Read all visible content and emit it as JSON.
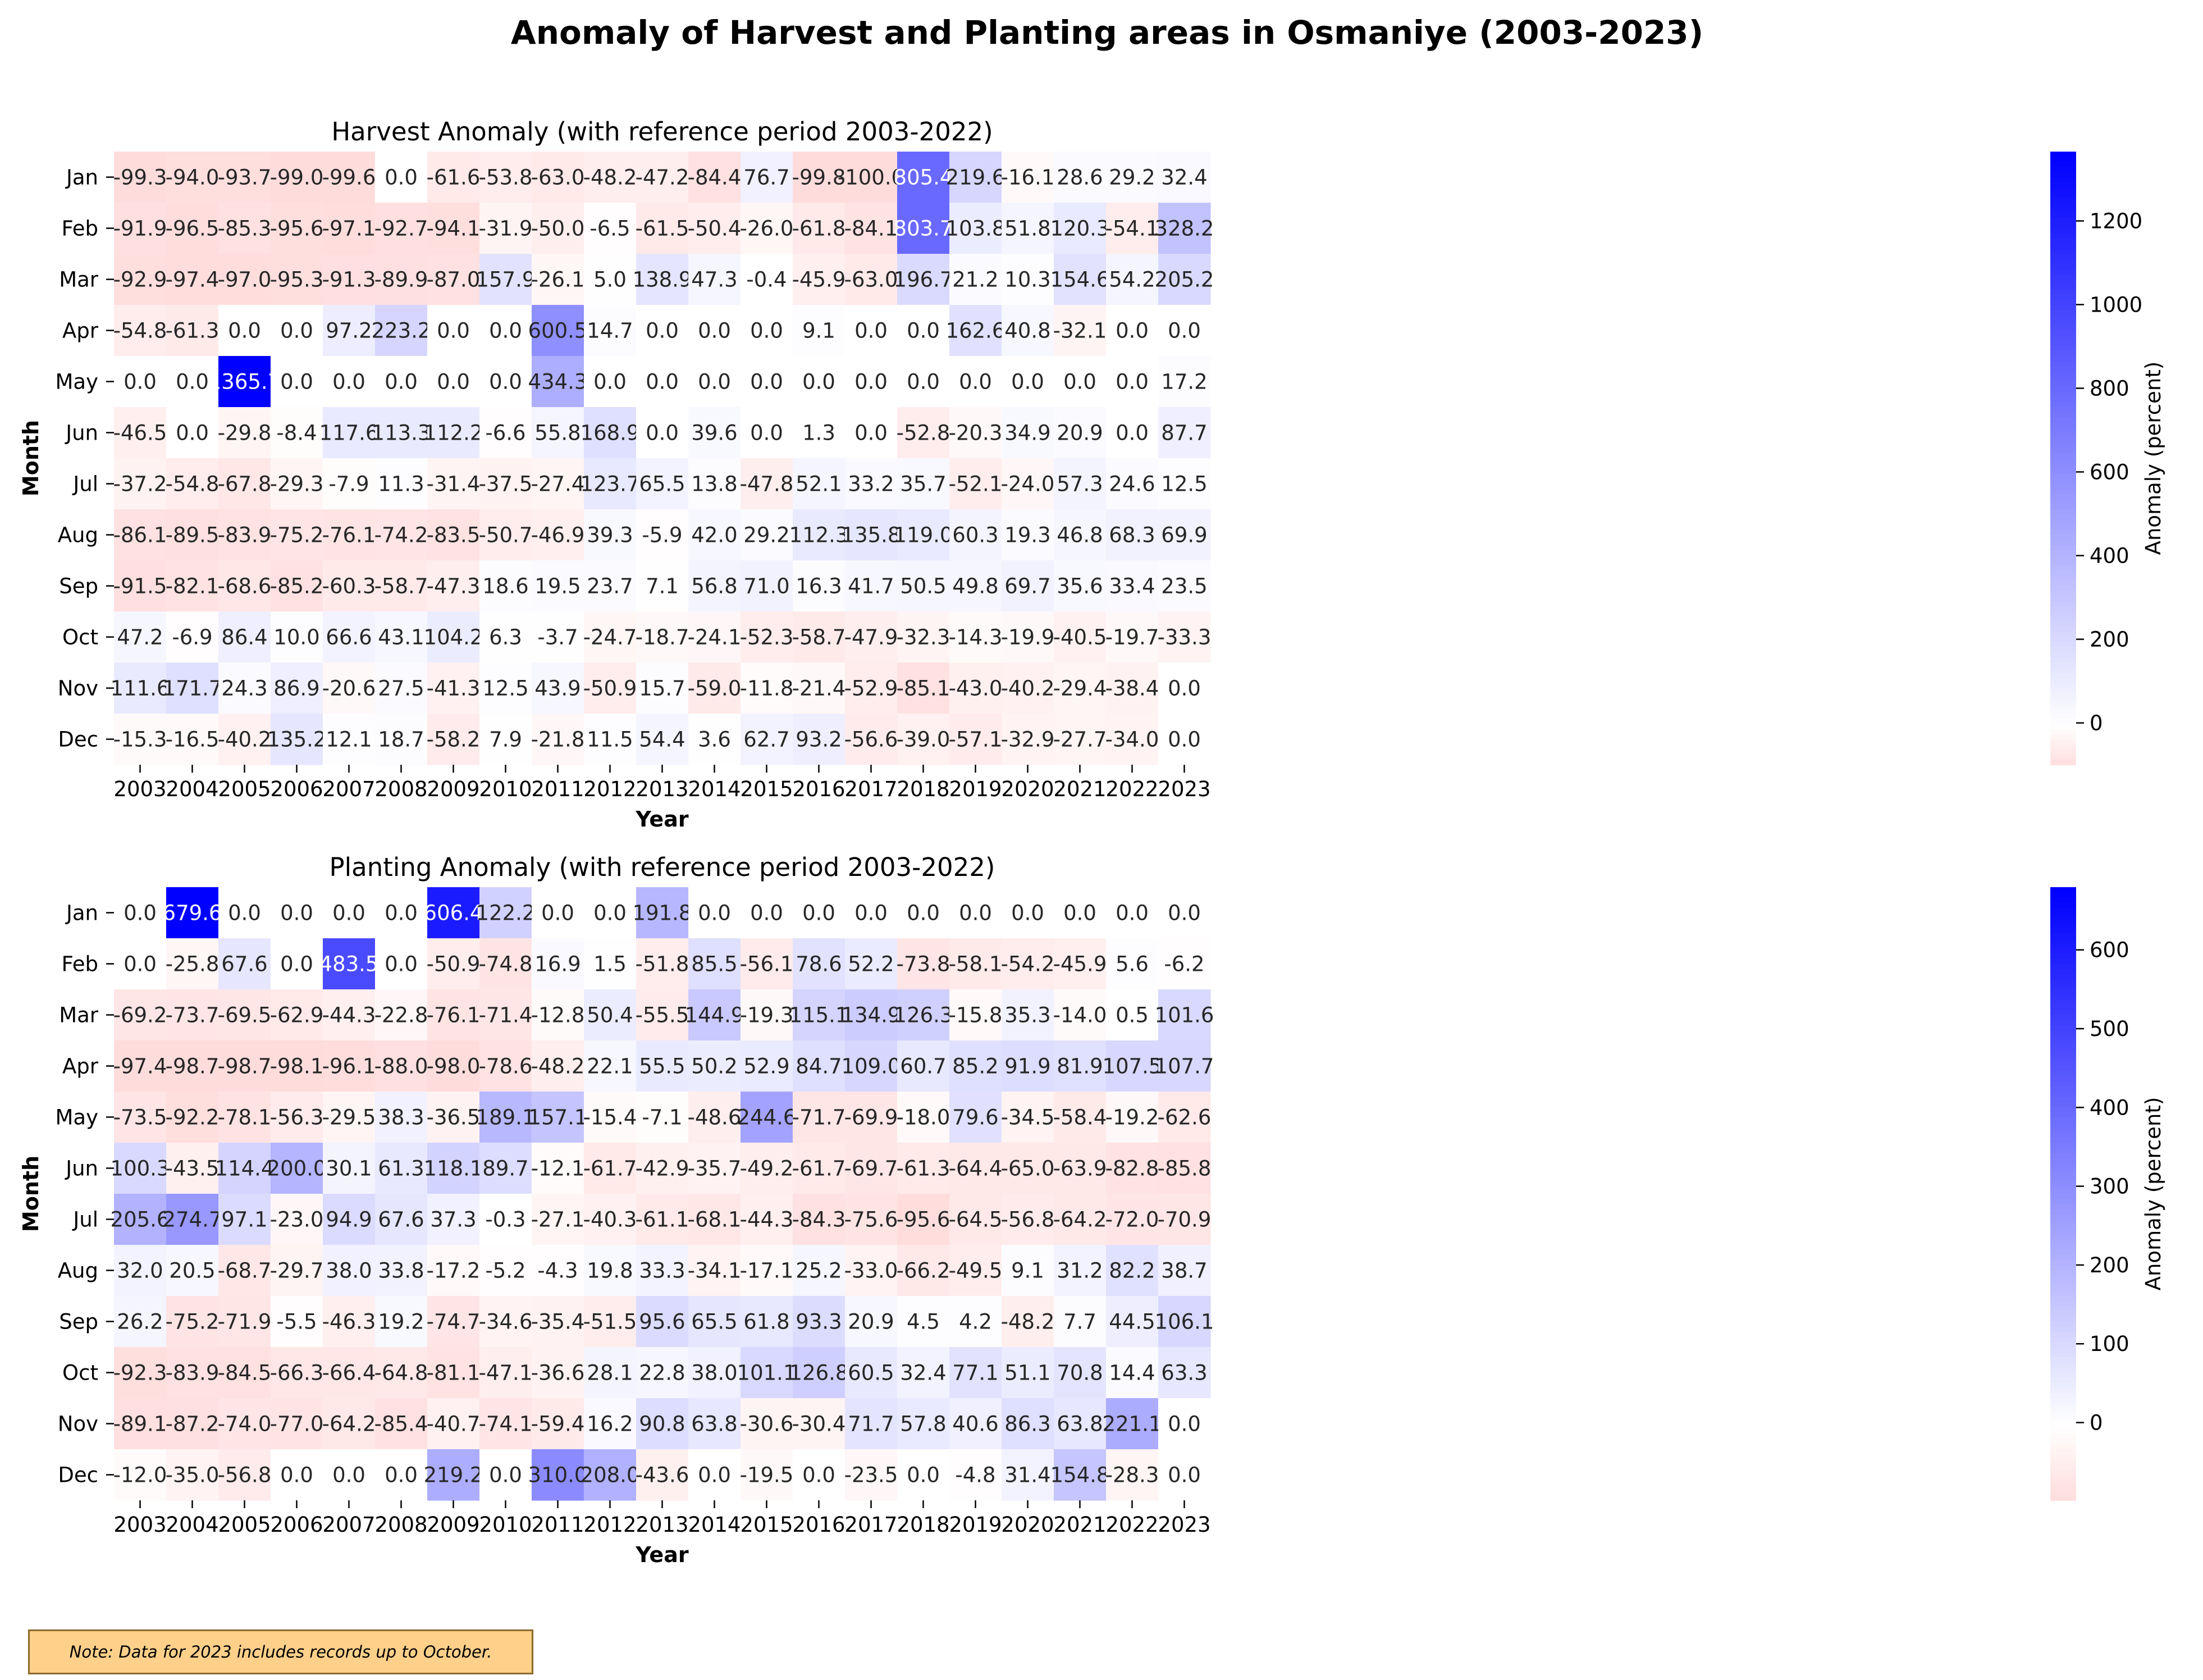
{
  "title": "Anomaly of Harvest and Planting areas in Osmaniye (2003-2023)",
  "note": "Note: Data for 2023 includes records up to October.",
  "chart_data": [
    {
      "type": "heatmap",
      "title": "Harvest Anomaly (with reference period 2003-2022)",
      "xlabel": "Year",
      "ylabel": "Month",
      "x": [
        "2003",
        "2004",
        "2005",
        "2006",
        "2007",
        "2008",
        "2009",
        "2010",
        "2011",
        "2012",
        "2013",
        "2014",
        "2015",
        "2016",
        "2017",
        "2018",
        "2019",
        "2020",
        "2021",
        "2022",
        "2023"
      ],
      "y": [
        "Jan",
        "Feb",
        "Mar",
        "Apr",
        "May",
        "Jun",
        "Jul",
        "Aug",
        "Sep",
        "Oct",
        "Nov",
        "Dec"
      ],
      "values": [
        [
          -99.3,
          -94.0,
          -93.7,
          -99.0,
          -99.6,
          0.0,
          -61.6,
          -53.8,
          -63.0,
          -48.2,
          -47.2,
          -84.4,
          76.7,
          -99.8,
          -100.0,
          805.4,
          219.6,
          -16.1,
          28.6,
          29.2,
          32.4
        ],
        [
          -91.9,
          -96.5,
          -85.3,
          -95.6,
          -97.1,
          -92.7,
          -94.1,
          -31.9,
          -50.0,
          -6.5,
          -61.5,
          -50.4,
          -26.0,
          -61.8,
          -84.1,
          803.7,
          103.8,
          51.8,
          120.3,
          -54.1,
          328.2
        ],
        [
          -92.9,
          -97.4,
          -97.0,
          -95.3,
          -91.3,
          -89.9,
          -87.0,
          157.9,
          -26.1,
          5.0,
          138.9,
          47.3,
          -0.4,
          -45.9,
          -63.0,
          196.7,
          21.2,
          10.3,
          154.6,
          54.2,
          205.2
        ],
        [
          -54.8,
          -61.3,
          0.0,
          0.0,
          97.2,
          223.2,
          0.0,
          0.0,
          600.5,
          14.7,
          0.0,
          0.0,
          0.0,
          9.1,
          0.0,
          0.0,
          162.6,
          40.8,
          -32.1,
          0.0,
          0.0
        ],
        [
          0.0,
          0.0,
          1365.7,
          0.0,
          0.0,
          0.0,
          0.0,
          0.0,
          434.3,
          0.0,
          0.0,
          0.0,
          0.0,
          0.0,
          0.0,
          0.0,
          0.0,
          0.0,
          0.0,
          0.0,
          17.2
        ],
        [
          -46.5,
          0.0,
          -29.8,
          -8.4,
          117.6,
          113.3,
          112.2,
          -6.6,
          55.8,
          168.9,
          0.0,
          39.6,
          0.0,
          1.3,
          0.0,
          -52.8,
          -20.3,
          34.9,
          20.9,
          0.0,
          87.7
        ],
        [
          -37.2,
          -54.8,
          -67.8,
          -29.3,
          -7.9,
          11.3,
          -31.4,
          -37.5,
          -27.4,
          123.7,
          65.5,
          13.8,
          -47.8,
          52.1,
          33.2,
          35.7,
          -52.1,
          -24.0,
          57.3,
          24.6,
          12.5
        ],
        [
          -86.1,
          -89.5,
          -83.9,
          -75.2,
          -76.1,
          -74.2,
          -83.5,
          -50.7,
          -46.9,
          39.3,
          -5.9,
          42.0,
          29.2,
          112.3,
          135.8,
          119.0,
          60.3,
          19.3,
          46.8,
          68.3,
          69.9
        ],
        [
          -91.5,
          -82.1,
          -68.6,
          -85.2,
          -60.3,
          -58.7,
          -47.3,
          18.6,
          19.5,
          23.7,
          7.1,
          56.8,
          71.0,
          16.3,
          41.7,
          50.5,
          49.8,
          69.7,
          35.6,
          33.4,
          23.5
        ],
        [
          47.2,
          -6.9,
          86.4,
          10.0,
          66.6,
          43.1,
          104.2,
          6.3,
          -3.7,
          -24.7,
          -18.7,
          -24.1,
          -52.3,
          -58.7,
          -47.9,
          -32.3,
          -14.3,
          -19.9,
          -40.5,
          -19.7,
          -33.3
        ],
        [
          111.6,
          171.7,
          24.3,
          86.9,
          -20.6,
          27.5,
          -41.3,
          12.5,
          43.9,
          -50.9,
          15.7,
          -59.0,
          -11.8,
          -21.4,
          -52.9,
          -85.1,
          -43.0,
          -40.2,
          -29.4,
          -38.4,
          0.0
        ],
        [
          -15.3,
          -16.5,
          -40.2,
          135.2,
          12.1,
          18.7,
          -58.2,
          7.9,
          -21.8,
          11.5,
          54.4,
          3.6,
          62.7,
          93.2,
          -56.6,
          -39.0,
          -57.1,
          -32.9,
          -27.7,
          -34.0,
          0.0
        ]
      ],
      "colorbar": {
        "label": "Anomaly (percent)",
        "ticks": [
          0,
          200,
          400,
          600,
          800,
          1000,
          1200
        ],
        "range": [
          -100.0,
          1365.7
        ]
      },
      "colors": {
        "negative": "#ffdcdc",
        "zero": "#ffffff",
        "positive": "#0000ff"
      }
    },
    {
      "type": "heatmap",
      "title": "Planting Anomaly (with reference period 2003-2022)",
      "xlabel": "Year",
      "ylabel": "Month",
      "x": [
        "2003",
        "2004",
        "2005",
        "2006",
        "2007",
        "2008",
        "2009",
        "2010",
        "2011",
        "2012",
        "2013",
        "2014",
        "2015",
        "2016",
        "2017",
        "2018",
        "2019",
        "2020",
        "2021",
        "2022",
        "2023"
      ],
      "y": [
        "Jan",
        "Feb",
        "Mar",
        "Apr",
        "May",
        "Jun",
        "Jul",
        "Aug",
        "Sep",
        "Oct",
        "Nov",
        "Dec"
      ],
      "values": [
        [
          0.0,
          679.6,
          0.0,
          0.0,
          0.0,
          0.0,
          606.4,
          122.2,
          0.0,
          0.0,
          191.8,
          0.0,
          0.0,
          0.0,
          0.0,
          0.0,
          0.0,
          0.0,
          0.0,
          0.0,
          0.0
        ],
        [
          0.0,
          -25.8,
          67.6,
          0.0,
          483.5,
          0.0,
          -50.9,
          -74.8,
          16.9,
          1.5,
          -51.8,
          85.5,
          -56.1,
          78.6,
          52.2,
          -73.8,
          -58.1,
          -54.2,
          -45.9,
          5.6,
          -6.2
        ],
        [
          -69.2,
          -73.7,
          -69.5,
          -62.9,
          -44.3,
          -22.8,
          -76.1,
          -71.4,
          -12.8,
          50.4,
          -55.5,
          144.9,
          -19.3,
          115.1,
          134.9,
          126.3,
          -15.8,
          35.3,
          -14.0,
          0.5,
          101.6
        ],
        [
          -97.4,
          -98.7,
          -98.7,
          -98.1,
          -96.1,
          -88.0,
          -98.0,
          -78.6,
          -48.2,
          22.1,
          55.5,
          50.2,
          52.9,
          84.7,
          109.0,
          60.7,
          85.2,
          91.9,
          81.9,
          107.5,
          107.7
        ],
        [
          -73.5,
          -92.2,
          -78.1,
          -56.3,
          -29.5,
          38.3,
          -36.5,
          189.1,
          157.1,
          -15.4,
          -7.1,
          -48.6,
          244.6,
          -71.7,
          -69.9,
          -18.0,
          79.6,
          -34.5,
          -58.4,
          -19.2,
          -62.6
        ],
        [
          100.3,
          -43.5,
          114.4,
          200.0,
          30.1,
          61.3,
          118.1,
          89.7,
          -12.1,
          -61.7,
          -42.9,
          -35.7,
          -49.2,
          -61.7,
          -69.7,
          -61.3,
          -64.4,
          -65.0,
          -63.9,
          -82.8,
          -85.8
        ],
        [
          205.6,
          274.7,
          97.1,
          -23.0,
          94.9,
          67.6,
          37.3,
          -0.3,
          -27.1,
          -40.3,
          -61.1,
          -68.1,
          -44.3,
          -84.3,
          -75.6,
          -95.6,
          -64.5,
          -56.8,
          -64.2,
          -72.0,
          -70.9
        ],
        [
          32.0,
          20.5,
          -68.7,
          -29.7,
          38.0,
          33.8,
          -17.2,
          -5.2,
          -4.3,
          19.8,
          33.3,
          -34.1,
          -17.1,
          25.2,
          -33.0,
          -66.2,
          -49.5,
          9.1,
          31.2,
          82.2,
          38.7
        ],
        [
          26.2,
          -75.2,
          -71.9,
          -5.5,
          -46.3,
          19.2,
          -74.7,
          -34.6,
          -35.4,
          -51.5,
          95.6,
          65.5,
          61.8,
          93.3,
          20.9,
          4.5,
          4.2,
          -48.2,
          7.7,
          44.5,
          106.1
        ],
        [
          -92.3,
          -83.9,
          -84.5,
          -66.3,
          -66.4,
          -64.8,
          -81.1,
          -47.1,
          -36.6,
          28.1,
          22.8,
          38.0,
          101.1,
          126.8,
          60.5,
          32.4,
          77.1,
          51.1,
          70.8,
          14.4,
          63.3
        ],
        [
          -89.1,
          -87.2,
          -74.0,
          -77.0,
          -64.2,
          -85.4,
          -40.7,
          -74.1,
          -59.4,
          16.2,
          90.8,
          63.8,
          -30.6,
          -30.4,
          71.7,
          57.8,
          40.6,
          86.3,
          63.8,
          221.1,
          0.0
        ],
        [
          -12.0,
          -35.0,
          -56.8,
          0.0,
          0.0,
          0.0,
          219.2,
          0.0,
          310.0,
          208.0,
          -43.6,
          0.0,
          -19.5,
          0.0,
          -23.5,
          0.0,
          -4.8,
          31.4,
          154.8,
          -28.3,
          0.0
        ]
      ],
      "colorbar": {
        "label": "Anomaly (percent)",
        "ticks": [
          0,
          100,
          200,
          300,
          400,
          500,
          600
        ],
        "range": [
          -98.7,
          679.6
        ]
      },
      "colors": {
        "negative": "#ffdcdc",
        "zero": "#ffffff",
        "positive": "#0000ff"
      }
    }
  ]
}
